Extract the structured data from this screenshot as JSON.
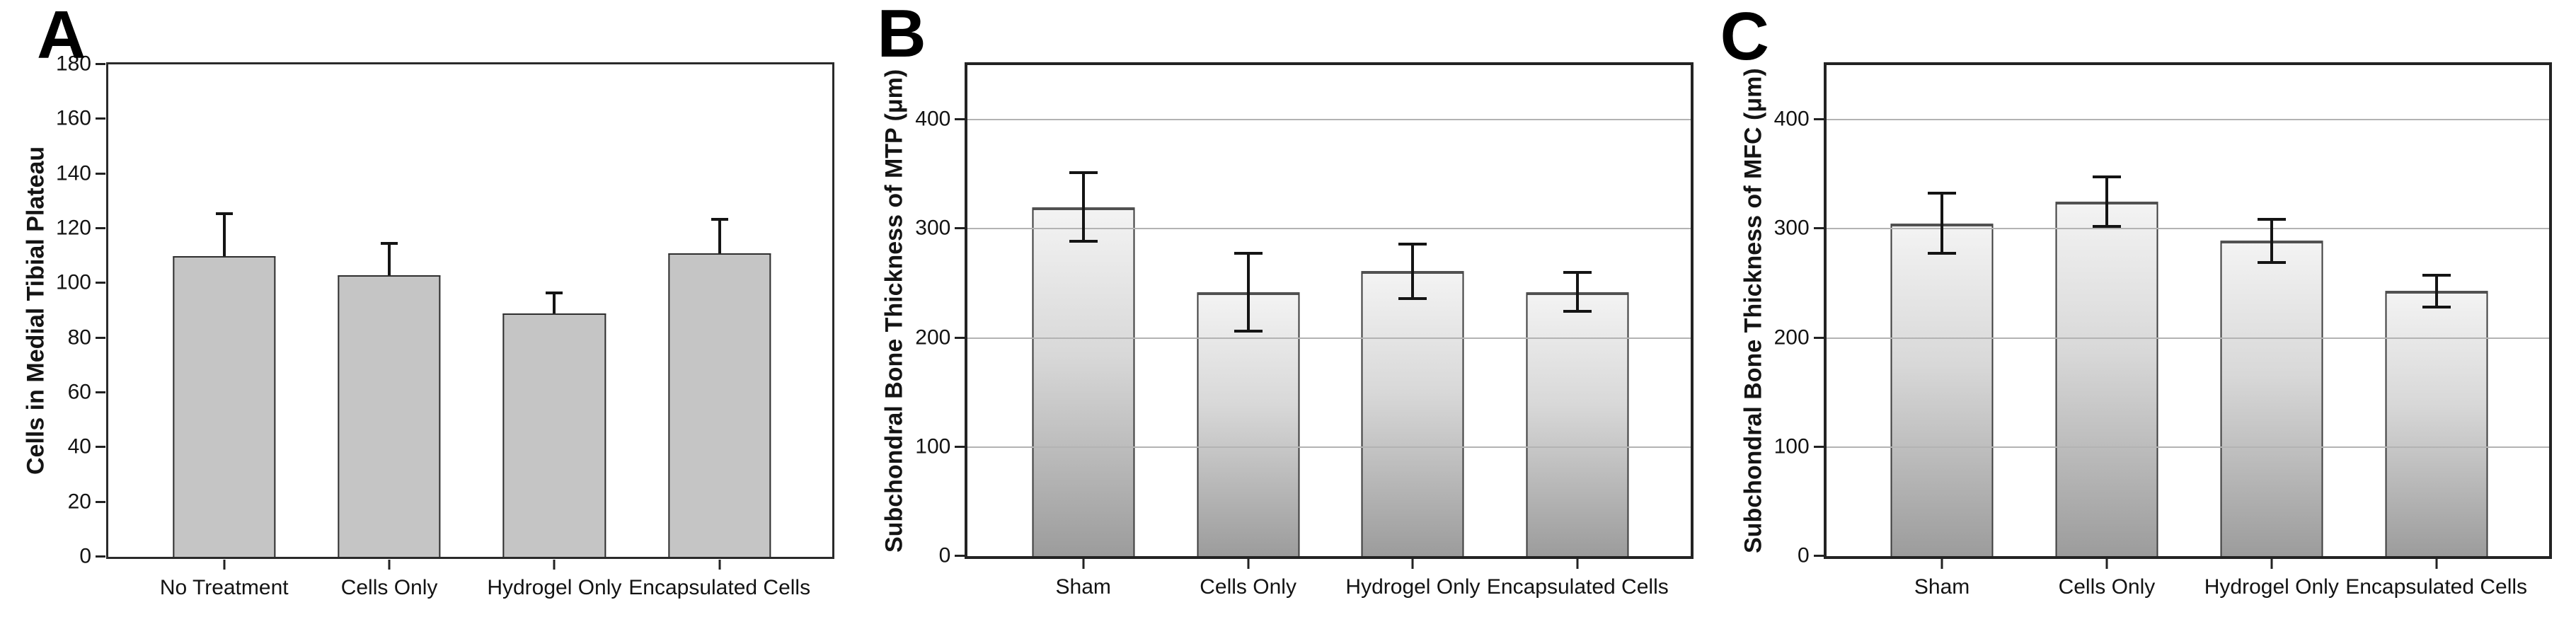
{
  "figure": {
    "background": "#ffffff",
    "text_color": "#111111",
    "panels": [
      "A",
      "B",
      "C"
    ]
  },
  "chart_data": [
    {
      "type": "bar",
      "panel": "A",
      "title": "",
      "xlabel": "",
      "ylabel": "Cells in Medial Tibial Plateau",
      "categories": [
        "No Treatment",
        "Cells Only",
        "Hydrogel Only",
        "Encapsulated Cells"
      ],
      "values": [
        110,
        103,
        89,
        111
      ],
      "errors": [
        16,
        12,
        8,
        13
      ],
      "error_direction": "up",
      "ylim": [
        0,
        180
      ],
      "yticks": [
        0,
        20,
        40,
        60,
        80,
        100,
        120,
        140,
        160,
        180
      ],
      "grid": false,
      "legend": "none",
      "bar_fill": "#c5c5c5",
      "bar_border": "#2e2e2e",
      "error_color": "#141414"
    },
    {
      "type": "bar",
      "panel": "B",
      "title": "",
      "xlabel": "",
      "ylabel": "Subchondral Bone Thickness of MTP (μm)",
      "categories": [
        "Sham",
        "Cells Only",
        "Hydrogel Only",
        "Encapsulated Cells"
      ],
      "values": [
        320,
        242,
        261,
        242
      ],
      "errors": [
        33,
        37,
        26,
        19
      ],
      "error_direction": "both",
      "ylim": [
        0,
        450
      ],
      "yticks": [
        0,
        100,
        200,
        300,
        400
      ],
      "grid": true,
      "gridline_color": "#b3b3b3",
      "legend": "none",
      "bar_fill_top": "#f3f3f3",
      "bar_fill_bottom": "#9c9c9c",
      "bar_border": "#3c3c3c",
      "error_color": "#141414"
    },
    {
      "type": "bar",
      "panel": "C",
      "title": "",
      "xlabel": "",
      "ylabel": "Subchondral Bone Thickness of MFC (μm)",
      "categories": [
        "Sham",
        "Cells Only",
        "Hydrogel Only",
        "Encapsulated Cells"
      ],
      "values": [
        305,
        325,
        289,
        243
      ],
      "errors": [
        29,
        24,
        21,
        16
      ],
      "error_direction": "both",
      "ylim": [
        0,
        450
      ],
      "yticks": [
        0,
        100,
        200,
        300,
        400
      ],
      "grid": true,
      "gridline_color": "#b3b3b3",
      "legend": "none",
      "bar_fill_top": "#f3f3f3",
      "bar_fill_bottom": "#9c9c9c",
      "bar_border": "#3c3c3c",
      "error_color": "#141414"
    }
  ]
}
